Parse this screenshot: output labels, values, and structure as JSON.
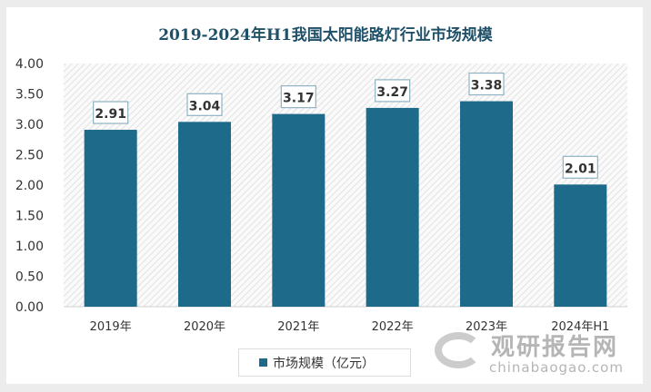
{
  "chart_data": {
    "type": "bar",
    "title": "2019-2024年H1我国太阳能路灯行业市场规模",
    "categories": [
      "2019年",
      "2020年",
      "2021年",
      "2022年",
      "2023年",
      "2024年H1"
    ],
    "series": [
      {
        "name": "市场规模（亿元）",
        "values": [
          2.91,
          3.04,
          3.17,
          3.27,
          3.38,
          2.01
        ]
      }
    ],
    "data_labels": [
      "2.91",
      "3.04",
      "3.17",
      "3.27",
      "3.38",
      "2.01"
    ],
    "ylim": [
      0,
      4
    ],
    "yticks": [
      "0.00",
      "0.50",
      "1.00",
      "1.50",
      "2.00",
      "2.50",
      "3.00",
      "3.50",
      "4.00"
    ],
    "legend": "bottom",
    "grid": false,
    "bar_color": "#1d6a8a",
    "title_color": "#1f5068"
  },
  "watermark": {
    "cn": "观研报告网",
    "en": "chinabaogao.com"
  }
}
